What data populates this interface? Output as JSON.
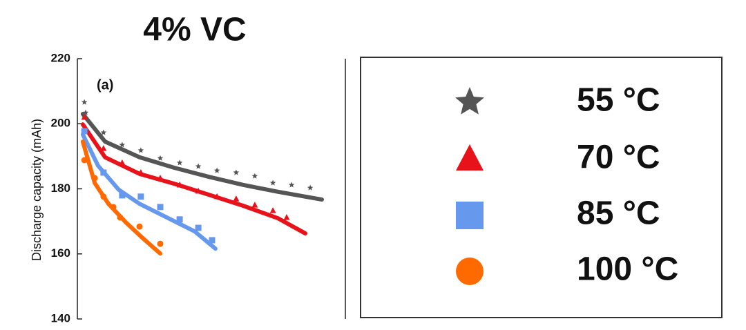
{
  "chart_data": {
    "type": "scatter",
    "title": "4% VC",
    "panel_label": "(a)",
    "y_label": "Discharge capacity (mAh)",
    "xlim": [
      0,
      100
    ],
    "ylim": [
      140,
      220
    ],
    "yticks": [
      140,
      160,
      180,
      200,
      220
    ],
    "series": [
      {
        "name": "55 °C",
        "color": "#555555",
        "marker": "star",
        "x": [
          2.7,
          3.2,
          10.1,
          17.3,
          24.5,
          32,
          39.5,
          46.7,
          53.9,
          61.3,
          68.5,
          75.5,
          82.7,
          89.9
        ],
        "values": [
          206.6,
          203.4,
          197.3,
          193.5,
          191.8,
          189.4,
          188,
          186.9,
          185.6,
          185,
          183.9,
          181.8,
          181.2,
          180.3
        ],
        "fit_x": [
          2.1,
          10.7,
          24,
          37.3,
          50.7,
          64,
          77.3,
          94.4
        ],
        "fit_values": [
          203,
          194.5,
          189.7,
          186.5,
          183.7,
          181.2,
          179.1,
          176.7
        ]
      },
      {
        "name": "70 °C",
        "color": "#e8121b",
        "marker": "triangle",
        "x": [
          2.7,
          10.1,
          17.3,
          24.5,
          32,
          39.5,
          46.7,
          53.9,
          61.3,
          68.5,
          75.5,
          80.8
        ],
        "values": [
          202,
          192.4,
          188,
          185,
          183.3,
          181.2,
          179.3,
          177.6,
          176.9,
          175,
          173.3,
          171.2
        ],
        "fit_x": [
          2.1,
          10.7,
          24,
          37.3,
          50.7,
          64,
          77.3,
          88
        ],
        "fit_values": [
          199.8,
          189.7,
          184.6,
          181.6,
          178.2,
          174.8,
          171,
          166.3
        ]
      },
      {
        "name": "85 °C",
        "color": "#6699ee",
        "marker": "square",
        "x": [
          2.7,
          10.1,
          17.3,
          24.5,
          32,
          39.5,
          46.7,
          52
        ],
        "values": [
          197.7,
          185,
          178,
          177.6,
          174.4,
          170.6,
          168,
          164.2
        ],
        "fit_x": [
          2.1,
          8,
          16,
          24,
          37.3,
          45.3,
          53.3
        ],
        "fit_values": [
          196.7,
          187.1,
          179.7,
          175.4,
          170.1,
          166.9,
          161.6
        ]
      },
      {
        "name": "100 °C",
        "color": "#ff6a00",
        "marker": "circle",
        "x": [
          2.7,
          6.7,
          10.1,
          13.9,
          16.5,
          24,
          32
        ],
        "values": [
          188.8,
          183.3,
          177.6,
          174.4,
          171.2,
          168.4,
          163.1
        ],
        "fit_x": [
          2.1,
          6.7,
          12,
          18.7,
          25.3,
          32
        ],
        "fit_values": [
          194.5,
          181.8,
          175.4,
          169.7,
          164.8,
          160.1
        ]
      }
    ]
  }
}
